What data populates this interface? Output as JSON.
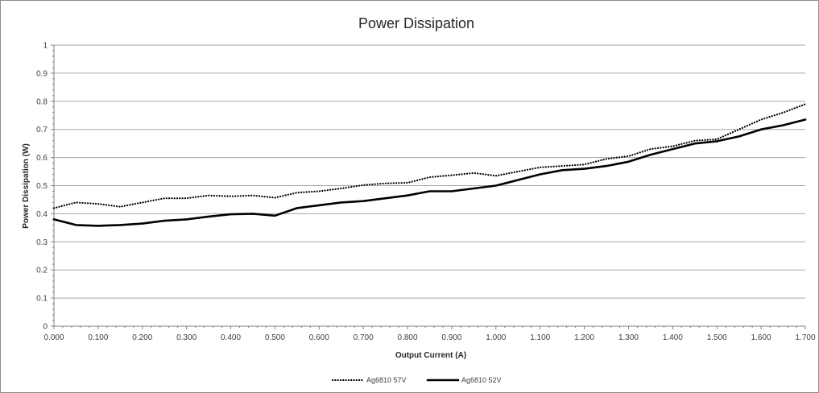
{
  "chart_data": {
    "type": "line",
    "title": "Power Dissipation",
    "xlabel": "Output Current (A)",
    "ylabel": "Power Dissipation (W)",
    "xlim": [
      0,
      1.7
    ],
    "ylim": [
      0,
      1
    ],
    "x_ticks": [
      "0.000",
      "0.100",
      "0.200",
      "0.300",
      "0.400",
      "0.500",
      "0.600",
      "0.700",
      "0.800",
      "0.900",
      "1.000",
      "1.100",
      "1.200",
      "1.300",
      "1.400",
      "1.500",
      "1.600",
      "1.700"
    ],
    "y_ticks": [
      "0",
      "0.1",
      "0.2",
      "0.3",
      "0.4",
      "0.5",
      "0.6",
      "0.7",
      "0.8",
      "0.9",
      "1"
    ],
    "grid": "horizontal",
    "legend": "bottom-center",
    "x": [
      0.0,
      0.05,
      0.1,
      0.15,
      0.2,
      0.25,
      0.3,
      0.35,
      0.4,
      0.45,
      0.5,
      0.55,
      0.6,
      0.65,
      0.7,
      0.75,
      0.8,
      0.85,
      0.9,
      0.95,
      1.0,
      1.05,
      1.1,
      1.15,
      1.2,
      1.25,
      1.3,
      1.35,
      1.4,
      1.45,
      1.5,
      1.55,
      1.6,
      1.65,
      1.7
    ],
    "series": [
      {
        "name": "Ag6810 57V",
        "style": "dotted",
        "color": "#000000",
        "values": [
          0.42,
          0.44,
          0.435,
          0.425,
          0.44,
          0.455,
          0.455,
          0.465,
          0.462,
          0.465,
          0.457,
          0.475,
          0.48,
          0.49,
          0.502,
          0.508,
          0.51,
          0.53,
          0.537,
          0.545,
          0.535,
          0.55,
          0.565,
          0.57,
          0.575,
          0.595,
          0.605,
          0.63,
          0.64,
          0.66,
          0.665,
          0.7,
          0.735,
          0.76,
          0.79
        ]
      },
      {
        "name": "Ag6810 52V",
        "style": "solid",
        "color": "#000000",
        "values": [
          0.38,
          0.36,
          0.357,
          0.36,
          0.365,
          0.375,
          0.38,
          0.39,
          0.398,
          0.4,
          0.393,
          0.42,
          0.43,
          0.44,
          0.445,
          0.455,
          0.465,
          0.48,
          0.48,
          0.49,
          0.5,
          0.52,
          0.54,
          0.555,
          0.56,
          0.57,
          0.585,
          0.61,
          0.63,
          0.65,
          0.658,
          0.675,
          0.7,
          0.715,
          0.735
        ]
      }
    ]
  }
}
